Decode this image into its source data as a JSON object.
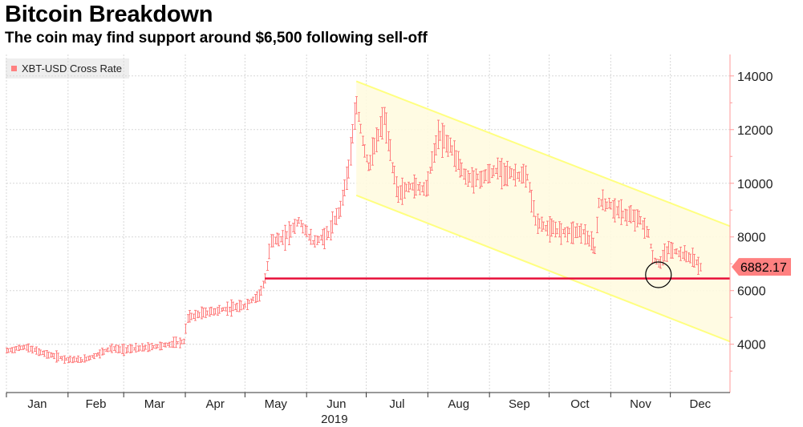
{
  "title": "Bitcoin Breakdown",
  "subtitle": "The coin may find support around $6,500 following sell-off",
  "legend": {
    "label": "XBT-USD Cross Rate"
  },
  "last_value_label": "6882.17",
  "colors": {
    "series": "#ff8080",
    "support": "#e8103a",
    "channel_line": "#ffff80",
    "channel_fill": "#fffbe0",
    "grid": "#d7d7d7",
    "axis": "#ff9a9a"
  },
  "chart_data": {
    "type": "candlestick",
    "title": "Bitcoin Breakdown",
    "subtitle": "The coin may find support around $6,500 following sell-off",
    "series_name": "XBT-USD Cross Rate",
    "x_axis": {
      "ticks": [
        "Jan",
        "Feb",
        "Mar",
        "Apr",
        "May",
        "Jun",
        "Jul",
        "Aug",
        "Sep",
        "Oct",
        "Nov",
        "Dec"
      ],
      "year_label": "2019"
    },
    "y_axis": {
      "ticks": [
        4000,
        6000,
        8000,
        10000,
        12000,
        14000
      ],
      "range": [
        2200,
        14800
      ],
      "side": "right"
    },
    "last_value": 6882.17,
    "support_level": {
      "value": 6450,
      "start": "2019-05-11",
      "end": "2019-12-31"
    },
    "channel": {
      "upper": [
        [
          "2019-06-26",
          13800
        ],
        [
          "2019-12-31",
          8400
        ]
      ],
      "lower": [
        [
          "2019-06-26",
          9550
        ],
        [
          "2019-12-31",
          4100
        ]
      ]
    },
    "highlight_circle": {
      "date": "2019-11-25",
      "value": 6500
    },
    "anchors": [
      [
        "2019-01-01",
        3750
      ],
      [
        "2019-01-10",
        3900
      ],
      [
        "2019-01-20",
        3650
      ],
      [
        "2019-01-31",
        3450
      ],
      [
        "2019-02-08",
        3400
      ],
      [
        "2019-02-15",
        3600
      ],
      [
        "2019-02-22",
        3850
      ],
      [
        "2019-02-28",
        3800
      ],
      [
        "2019-03-10",
        3850
      ],
      [
        "2019-03-20",
        3950
      ],
      [
        "2019-03-31",
        4100
      ],
      [
        "2019-04-02",
        5000
      ],
      [
        "2019-04-10",
        5150
      ],
      [
        "2019-04-20",
        5300
      ],
      [
        "2019-04-30",
        5400
      ],
      [
        "2019-05-08",
        5850
      ],
      [
        "2019-05-11",
        6400
      ],
      [
        "2019-05-14",
        7900
      ],
      [
        "2019-05-20",
        7900
      ],
      [
        "2019-05-28",
        8600
      ],
      [
        "2019-06-04",
        7800
      ],
      [
        "2019-06-12",
        8100
      ],
      [
        "2019-06-18",
        9100
      ],
      [
        "2019-06-22",
        10600
      ],
      [
        "2019-06-26",
        12900
      ],
      [
        "2019-06-29",
        11600
      ],
      [
        "2019-07-02",
        10600
      ],
      [
        "2019-07-07",
        11800
      ],
      [
        "2019-07-10",
        12500
      ],
      [
        "2019-07-14",
        10600
      ],
      [
        "2019-07-17",
        9600
      ],
      [
        "2019-07-23",
        9900
      ],
      [
        "2019-07-31",
        9800
      ],
      [
        "2019-08-06",
        11800
      ],
      [
        "2019-08-12",
        11400
      ],
      [
        "2019-08-20",
        10200
      ],
      [
        "2019-08-28",
        10200
      ],
      [
        "2019-09-05",
        10500
      ],
      [
        "2019-09-12",
        10350
      ],
      [
        "2019-09-20",
        10200
      ],
      [
        "2019-09-24",
        8600
      ],
      [
        "2019-09-30",
        8300
      ],
      [
        "2019-10-08",
        8200
      ],
      [
        "2019-10-18",
        8200
      ],
      [
        "2019-10-24",
        7500
      ],
      [
        "2019-10-26",
        9300
      ],
      [
        "2019-10-31",
        9200
      ],
      [
        "2019-11-08",
        8800
      ],
      [
        "2019-11-15",
        8700
      ],
      [
        "2019-11-20",
        8100
      ],
      [
        "2019-11-22",
        7200
      ],
      [
        "2019-11-25",
        7000
      ],
      [
        "2019-11-30",
        7550
      ],
      [
        "2019-12-05",
        7400
      ],
      [
        "2019-12-12",
        7200
      ],
      [
        "2019-12-16",
        6882
      ]
    ]
  }
}
